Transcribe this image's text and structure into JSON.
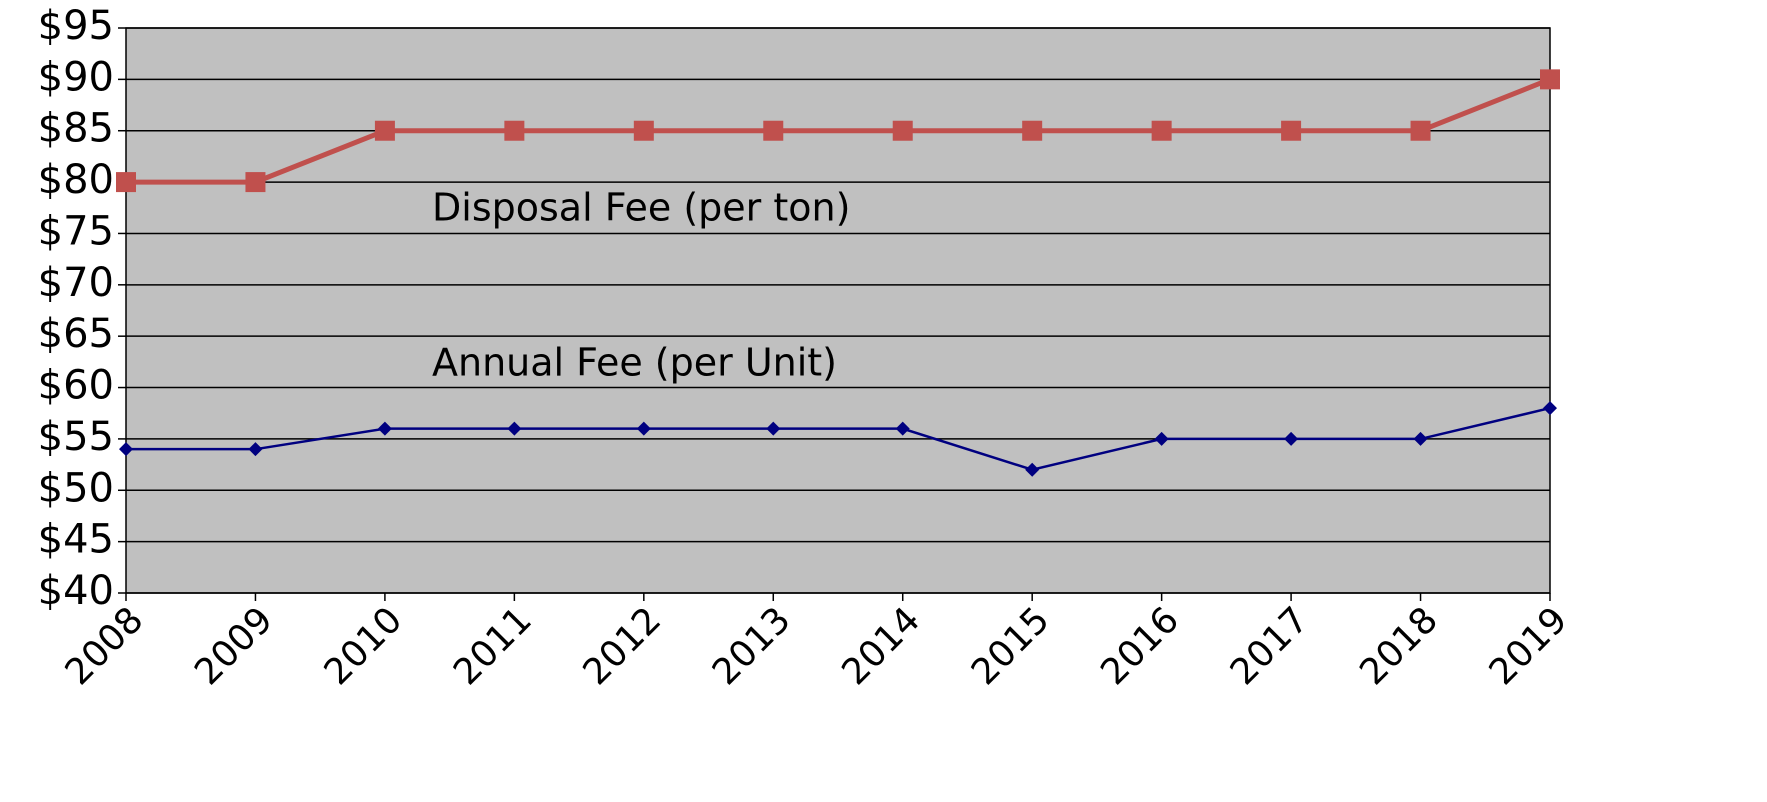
{
  "chart_data": {
    "type": "line",
    "categories": [
      "2008",
      "2009",
      "2010",
      "2011",
      "2012",
      "2013",
      "2014",
      "2015",
      "2016",
      "2017",
      "2018",
      "2019"
    ],
    "series": [
      {
        "name": "Disposal Fee (per ton)",
        "color": "#c0504d",
        "marker": "square",
        "values": [
          80,
          80,
          85,
          85,
          85,
          85,
          85,
          85,
          85,
          85,
          85,
          90
        ]
      },
      {
        "name": "Annual Fee (per Unit)",
        "color": "#000080",
        "marker": "diamond",
        "values": [
          54,
          54,
          56,
          56,
          56,
          56,
          56,
          52,
          55,
          55,
          55,
          58
        ]
      }
    ],
    "ylim": [
      40,
      95
    ],
    "yticks": [
      {
        "value": 40,
        "label": "$40"
      },
      {
        "value": 45,
        "label": "$45"
      },
      {
        "value": 50,
        "label": "$50"
      },
      {
        "value": 55,
        "label": "$55"
      },
      {
        "value": 60,
        "label": "$60"
      },
      {
        "value": 65,
        "label": "$65"
      },
      {
        "value": 70,
        "label": "$70"
      },
      {
        "value": 75,
        "label": "$75"
      },
      {
        "value": 80,
        "label": "$80"
      },
      {
        "value": 85,
        "label": "$85"
      },
      {
        "value": 90,
        "label": "$90"
      },
      {
        "value": 95,
        "label": "$95"
      }
    ],
    "grid": true,
    "plot_background": "#c0c0c0"
  }
}
